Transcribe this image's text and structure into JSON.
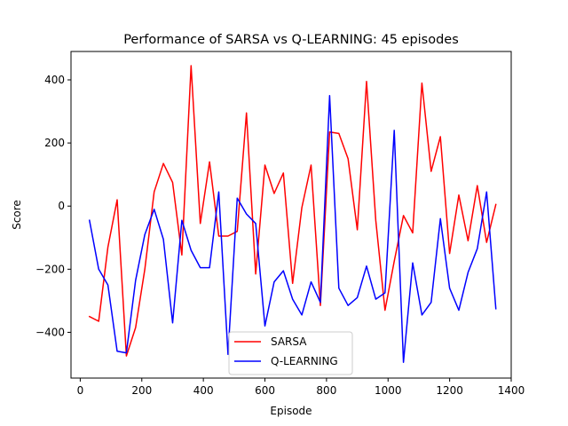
{
  "chart_data": {
    "type": "line",
    "title": "Performance of SARSA vs Q-LEARNING: 45 episodes",
    "xlabel": "Episode",
    "ylabel": "Score",
    "xlim": [
      -30,
      1400
    ],
    "ylim": [
      -545,
      490
    ],
    "xticks": [
      0,
      200,
      400,
      600,
      800,
      1000,
      1200,
      1400
    ],
    "yticks": [
      -400,
      -200,
      0,
      200,
      400
    ],
    "grid": false,
    "legend_position": "lower center",
    "x": [
      30,
      60,
      90,
      120,
      150,
      180,
      210,
      240,
      270,
      300,
      330,
      360,
      390,
      420,
      450,
      480,
      510,
      540,
      570,
      600,
      630,
      660,
      690,
      720,
      750,
      780,
      810,
      840,
      870,
      900,
      930,
      960,
      990,
      1020,
      1050,
      1080,
      1110,
      1140,
      1170,
      1200,
      1230,
      1260,
      1290,
      1320,
      1350
    ],
    "series": [
      {
        "name": "SARSA",
        "color": "#ff0000",
        "values": [
          -350,
          -365,
          -130,
          20,
          -475,
          -385,
          -200,
          45,
          135,
          75,
          -155,
          445,
          -55,
          140,
          -95,
          -95,
          -80,
          295,
          -215,
          130,
          40,
          105,
          -245,
          -5,
          130,
          -315,
          235,
          230,
          150,
          -75,
          395,
          -45,
          -330,
          -175,
          -30,
          -85,
          390,
          110,
          220,
          -150,
          35,
          -110,
          65,
          -115,
          5
        ]
      },
      {
        "name": "Q-LEARNING",
        "color": "#0000ff",
        "values": [
          -45,
          -200,
          -250,
          -460,
          -465,
          -235,
          -90,
          -10,
          -105,
          -370,
          -45,
          -140,
          -195,
          -195,
          45,
          -470,
          25,
          -25,
          -55,
          -380,
          -240,
          -205,
          -295,
          -345,
          -240,
          -305,
          350,
          -260,
          -315,
          -290,
          -190,
          -295,
          -275,
          240,
          -495,
          -180,
          -345,
          -305,
          -40,
          -260,
          -330,
          -210,
          -135,
          45,
          -325
        ]
      }
    ]
  }
}
